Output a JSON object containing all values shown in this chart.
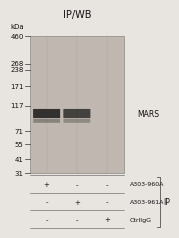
{
  "title": "IP/WB",
  "fig_bg": "#e8e4e0",
  "kda_values": [
    460,
    268,
    238,
    171,
    117,
    71,
    55,
    41,
    31
  ],
  "band_color": "#1a1a1a",
  "arrow_label": "MARS",
  "table_rows": [
    {
      "label": "A303-960A",
      "values": [
        "+",
        "-",
        "-"
      ]
    },
    {
      "label": "A303-961A",
      "values": [
        "-",
        "+",
        "-"
      ]
    },
    {
      "label": "CtrlIgG",
      "values": [
        "-",
        "-",
        "+"
      ]
    }
  ],
  "ip_label": "IP",
  "title_fontsize": 7,
  "label_fontsize": 5.5,
  "tick_fontsize": 5,
  "table_fontsize": 5
}
